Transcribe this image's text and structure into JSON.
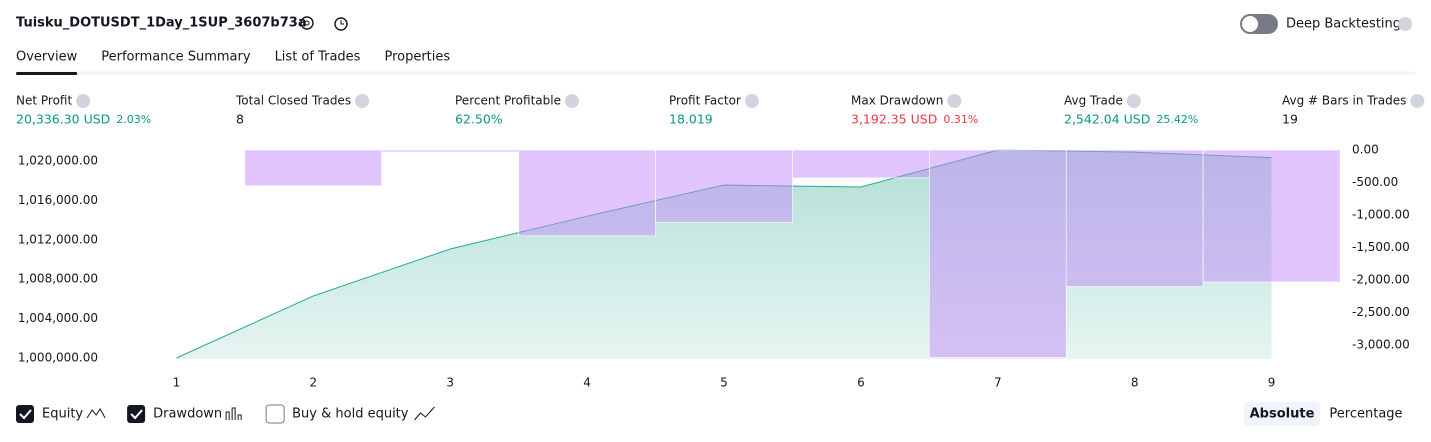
{
  "header": {
    "title": "Tuisku_DOTUSDT_1Day_1SUP_3607b73a",
    "toggle_label": "Deep Backtesting"
  },
  "tabs": [
    "Overview",
    "Performance Summary",
    "List of Trades",
    "Properties"
  ],
  "stats": [
    {
      "label": "Net Profit",
      "value": "20,336.30 USD",
      "sub": "2.03%",
      "color": "#089981"
    },
    {
      "label": "Total Closed Trades",
      "value": "8",
      "color": "#131722"
    },
    {
      "label": "Percent Profitable",
      "value": "62.50%",
      "color": "#089981"
    },
    {
      "label": "Profit Factor",
      "value": "18.019",
      "color": "#089981"
    },
    {
      "label": "Max Drawdown",
      "value": "3,192.35 USD",
      "sub": "0.31%",
      "color": "#f23645"
    },
    {
      "label": "Avg Trade",
      "value": "2,542.04 USD",
      "sub": "25.42%",
      "color": "#089981"
    },
    {
      "label": "Avg # Bars in Trades",
      "value": "19",
      "color": "#131722"
    }
  ],
  "chart_data": {
    "type": "line",
    "x": [
      1,
      2,
      3,
      4,
      5,
      6,
      7,
      8,
      9
    ],
    "xlim": [
      0.5,
      9.5
    ],
    "xticks": [
      1,
      2,
      3,
      4,
      5,
      6,
      7,
      8,
      9
    ],
    "series": [
      {
        "name": "Equity",
        "color": "#22ab94",
        "values": [
          1000000,
          1006300,
          1011070,
          1014400,
          1017560,
          1017360,
          1021120,
          1020900,
          1020340
        ]
      },
      {
        "name": "Drawdown",
        "color": "#c38bfa",
        "axis": "y2",
        "type": "bar",
        "values": [
          -10,
          -550,
          -30,
          -1320,
          -1110,
          -430,
          -3192,
          -2100,
          -2030
        ]
      }
    ],
    "ylim": [
      999900,
      1021120
    ],
    "yticks": [
      {
        "value": 1000000,
        "label": "1,000,000.00"
      },
      {
        "value": 1004000,
        "label": "1,004,000.00"
      },
      {
        "value": 1008000,
        "label": "1,008,000.00"
      },
      {
        "value": 1012000,
        "label": "1,012,000.00"
      },
      {
        "value": 1016000,
        "label": "1,016,000.00"
      },
      {
        "value": 1020000,
        "label": "1,020,000.00"
      }
    ],
    "y2lim": [
      -3215,
      0
    ],
    "y2ticks": [
      {
        "value": 0,
        "label": "0.00"
      },
      {
        "value": -500,
        "label": "-500.00"
      },
      {
        "value": -1000,
        "label": "-1,000.00"
      },
      {
        "value": -1500,
        "label": "-1,500.00"
      },
      {
        "value": -2000,
        "label": "-2,000.00"
      },
      {
        "value": -2500,
        "label": "-2,500.00"
      },
      {
        "value": -3000,
        "label": "-3,000.00"
      }
    ]
  },
  "footer": {
    "buy_hold": "Buy & hold equity",
    "modes": [
      "Absolute",
      "Percentage"
    ]
  }
}
